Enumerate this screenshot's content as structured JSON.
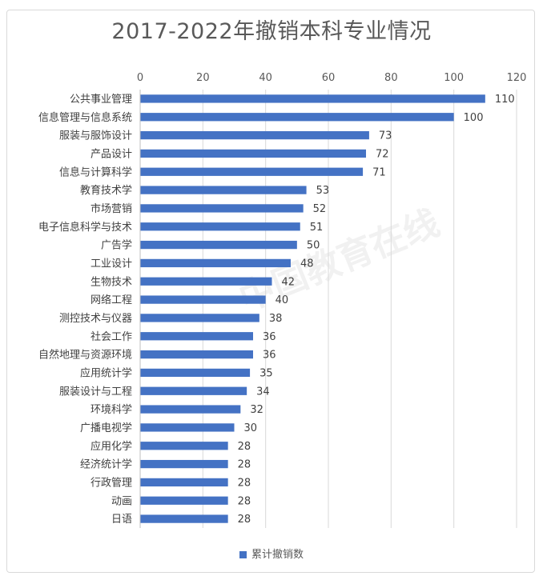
{
  "chart_data": {
    "type": "bar",
    "orientation": "horizontal",
    "title": "2017-2022年撤销本科专业情况",
    "categories": [
      "公共事业管理",
      "信息管理与信息系统",
      "服装与服饰设计",
      "产品设计",
      "信息与计算科学",
      "教育技术学",
      "市场营销",
      "电子信息科学与技术",
      "广告学",
      "工业设计",
      "生物技术",
      "网络工程",
      "测控技术与仪器",
      "社会工作",
      "自然地理与资源环境",
      "应用统计学",
      "服装设计与工程",
      "环境科学",
      "广播电视学",
      "应用化学",
      "经济统计学",
      "行政管理",
      "动画",
      "日语"
    ],
    "series": [
      {
        "name": "累计撤销数",
        "values": [
          110,
          100,
          73,
          72,
          71,
          53,
          52,
          51,
          50,
          48,
          42,
          40,
          38,
          36,
          36,
          35,
          34,
          32,
          30,
          28,
          28,
          28,
          28,
          28
        ]
      }
    ],
    "xlim": [
      0,
      120
    ],
    "xticks": [
      0,
      20,
      40,
      60,
      80,
      100,
      120
    ],
    "x_axis_position": "top",
    "grid": true,
    "legend_position": "bottom",
    "bar_color": "#4472c4"
  },
  "watermark": "中国教育在线"
}
